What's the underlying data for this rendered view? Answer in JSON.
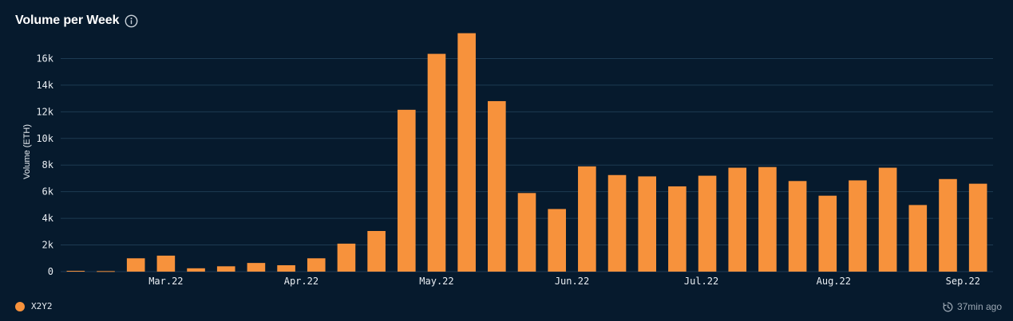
{
  "header": {
    "title": "Volume per Week",
    "info_icon": "info-icon"
  },
  "colors": {
    "background": "#061a2d",
    "bar": "#f7923c",
    "grid": "#1d3a52",
    "tick_text": "#e8edf2"
  },
  "chart_data": {
    "type": "bar",
    "title": "Volume per Week",
    "xlabel": "",
    "ylabel": "Volume (ETH)",
    "ylim": [
      0,
      18000
    ],
    "yticks": [
      0,
      2000,
      4000,
      6000,
      8000,
      10000,
      12000,
      14000,
      16000
    ],
    "ytick_labels": [
      "0",
      "2k",
      "4k",
      "6k",
      "8k",
      "10k",
      "12k",
      "14k",
      "16k"
    ],
    "grid": true,
    "x_tick_labels": [
      {
        "label": "Mar.22",
        "index": 3
      },
      {
        "label": "Apr.22",
        "index": 7.5
      },
      {
        "label": "May.22",
        "index": 12
      },
      {
        "label": "Jun.22",
        "index": 16.5
      },
      {
        "label": "Jul.22",
        "index": 20.8
      },
      {
        "label": "Aug.22",
        "index": 25.2
      },
      {
        "label": "Sep.22",
        "index": 29.5
      }
    ],
    "series": [
      {
        "name": "X2Y2",
        "values": [
          60,
          40,
          1000,
          1200,
          250,
          400,
          650,
          480,
          1000,
          2100,
          3050,
          12150,
          16350,
          17900,
          12800,
          5900,
          4700,
          7900,
          7250,
          7150,
          6400,
          7200,
          7800,
          7850,
          6800,
          5700,
          6850,
          7800,
          5000,
          6950,
          6600
        ]
      }
    ]
  },
  "legend": {
    "items": [
      {
        "label": "X2Y2",
        "color": "#f7923c"
      }
    ]
  },
  "footer": {
    "updated": "37min ago",
    "updated_icon": "clock-icon"
  }
}
